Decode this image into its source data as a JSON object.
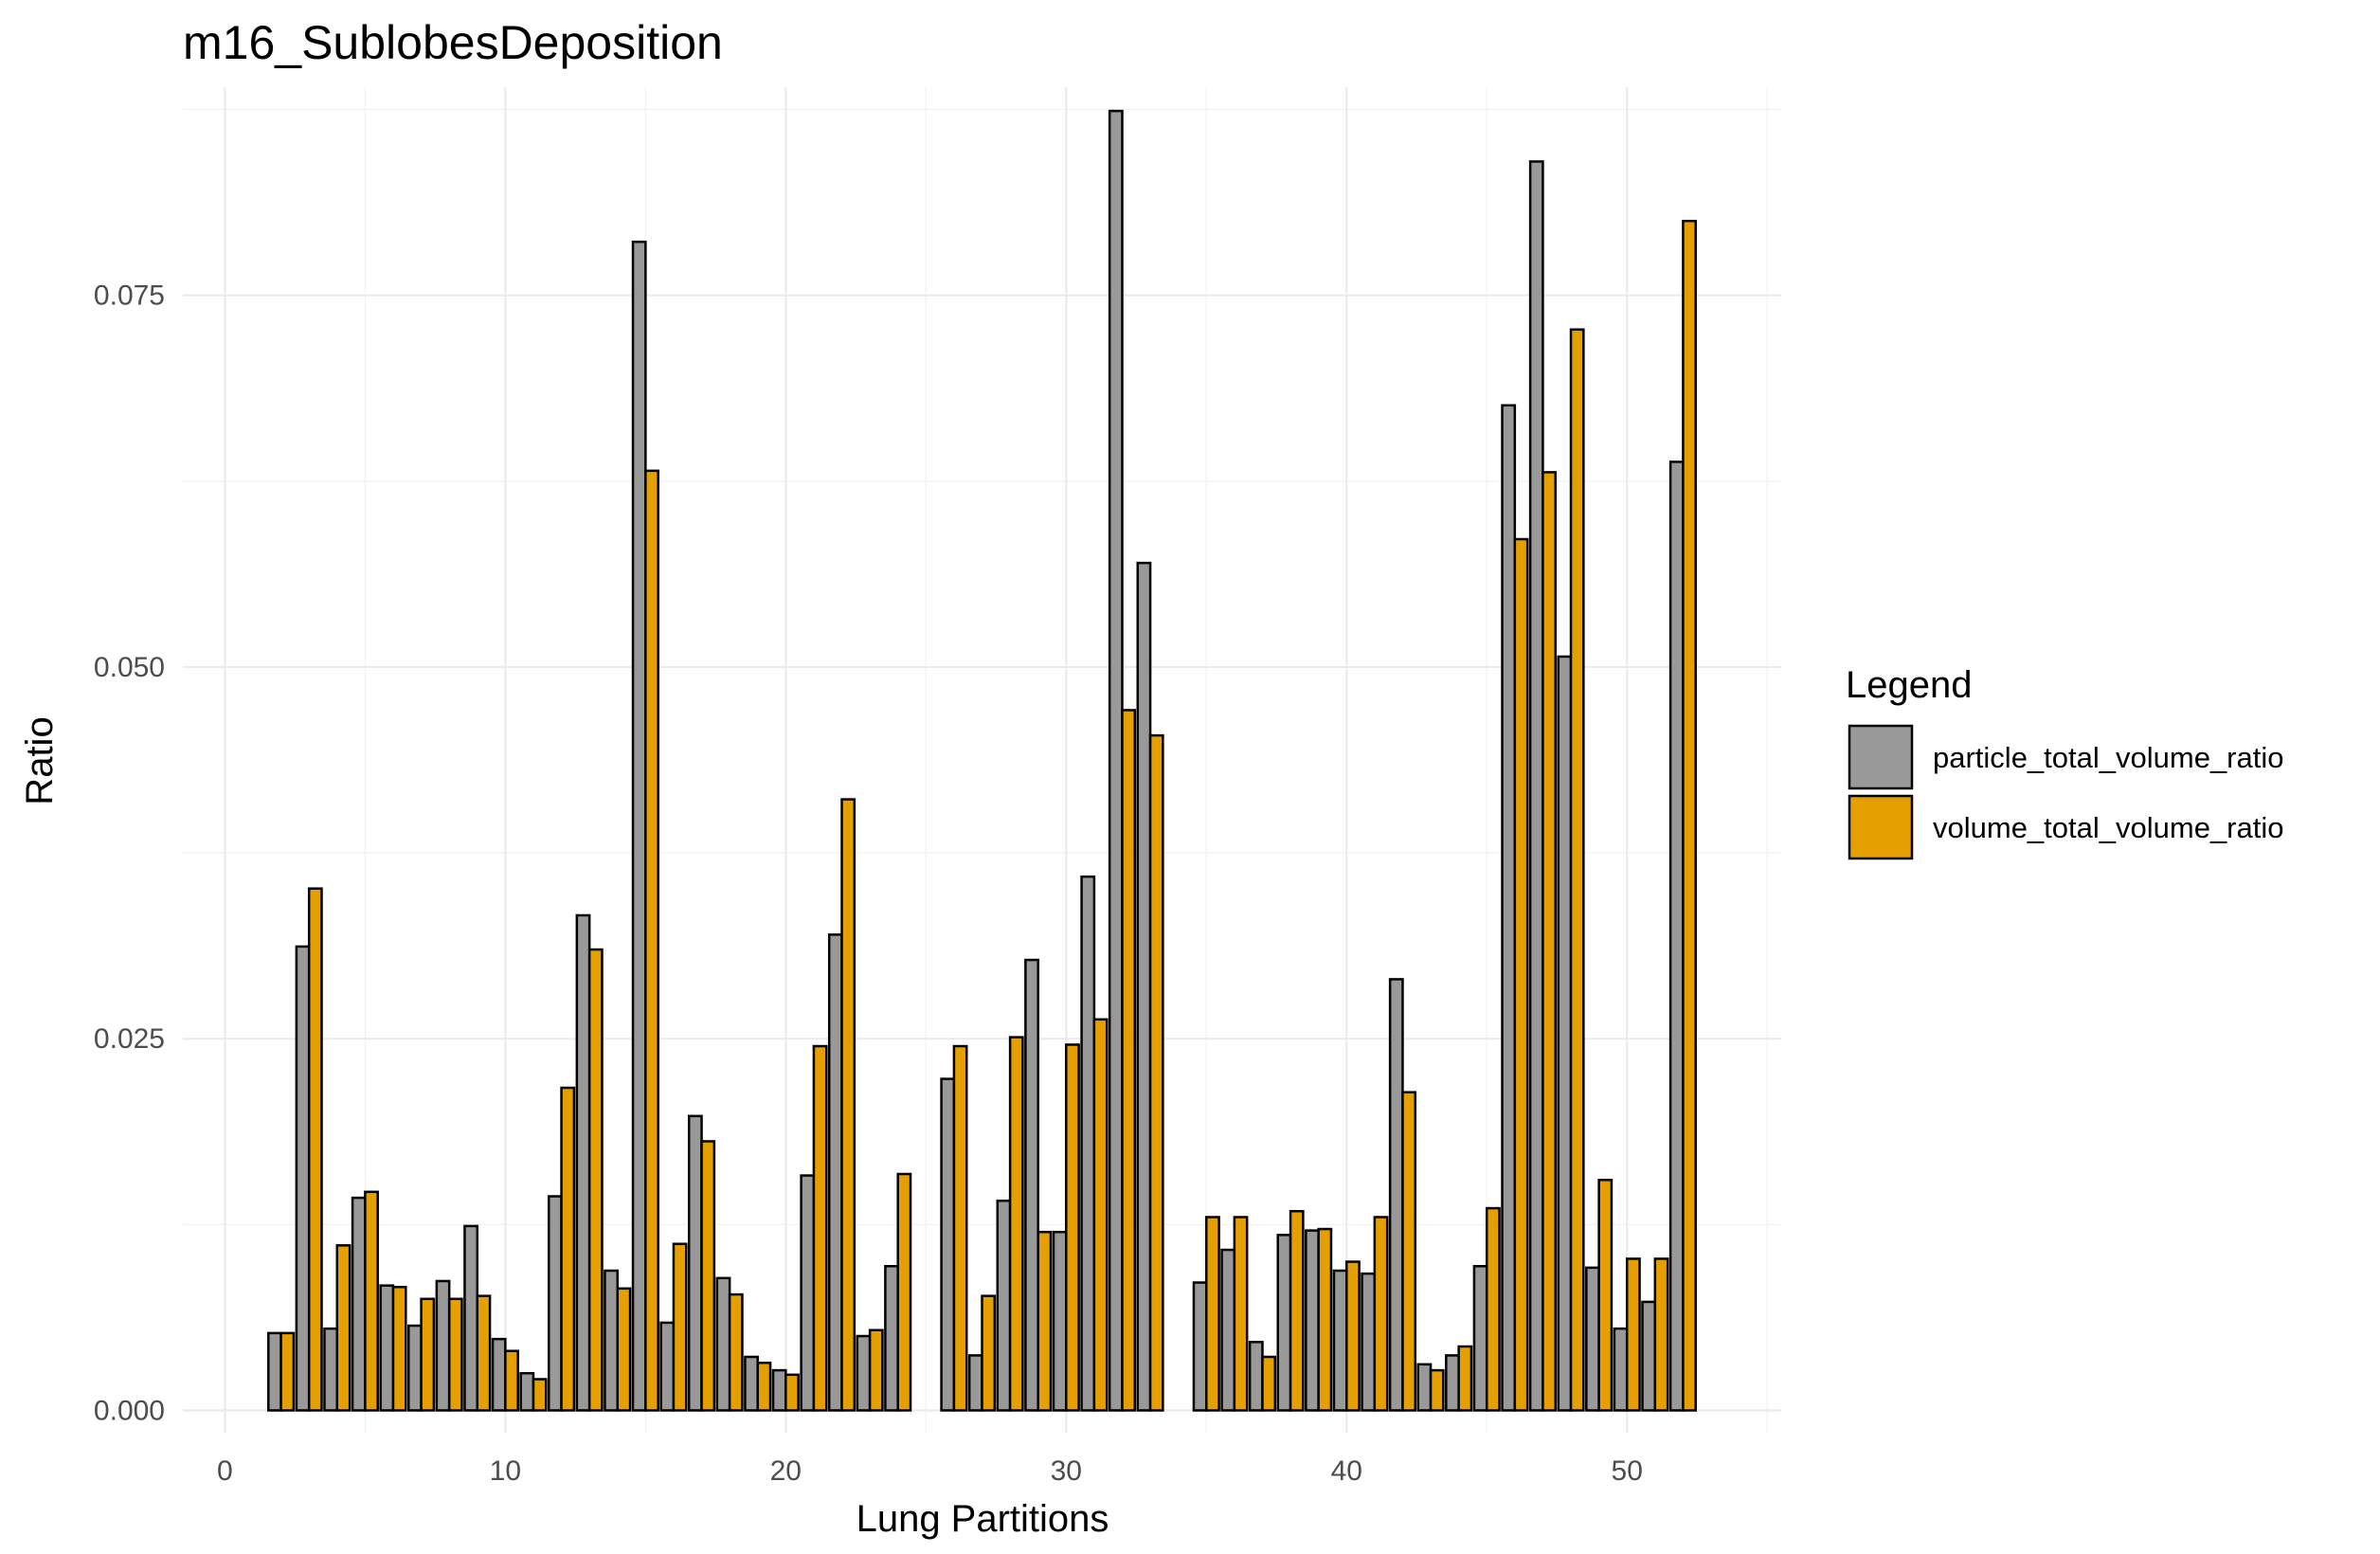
{
  "chart_data": {
    "type": "bar",
    "title": "m16_SublobesDeposition",
    "xlabel": "Lung Partitions",
    "ylabel": "Ratio",
    "xlim": [
      -1.5,
      55.5
    ],
    "ylim": [
      -0.0015,
      0.089
    ],
    "x_ticks": [
      0,
      10,
      20,
      30,
      40,
      50
    ],
    "x_tick_labels": [
      "0",
      "10",
      "20",
      "30",
      "40",
      "50"
    ],
    "y_ticks": [
      0.0,
      0.025,
      0.05,
      0.075
    ],
    "y_tick_labels": [
      "0.000",
      "0.025",
      "0.050",
      "0.075"
    ],
    "grid": true,
    "legend": {
      "title": "Legend",
      "position": "right"
    },
    "x": [
      1,
      2,
      3,
      4,
      5,
      6,
      7,
      8,
      9,
      10,
      11,
      12,
      13,
      14,
      15,
      16,
      17,
      18,
      19,
      20,
      21,
      22,
      23,
      24,
      25,
      26,
      27,
      28,
      29,
      30,
      31,
      32,
      33,
      34,
      35,
      36,
      37,
      38,
      39,
      40,
      41,
      42,
      43,
      44,
      45,
      46,
      47,
      48,
      49,
      50,
      51,
      52
    ],
    "series": [
      {
        "name": "particle_total_volume_ratio",
        "color": "#999999",
        "values": [
          0.0,
          0.0052,
          0.0312,
          0.0055,
          0.0143,
          0.0084,
          0.0057,
          0.0087,
          0.0124,
          0.0048,
          0.0025,
          0.0144,
          0.0333,
          0.0094,
          0.0786,
          0.0059,
          0.0198,
          0.0089,
          0.0036,
          0.0027,
          0.0158,
          0.032,
          0.005,
          0.0097,
          0.0,
          0.0223,
          0.0037,
          0.0141,
          0.0303,
          0.012,
          0.0359,
          0.0874,
          0.057,
          0.0,
          0.0086,
          0.0108,
          0.0046,
          0.0118,
          0.0121,
          0.0094,
          0.0092,
          0.029,
          0.0031,
          0.0037,
          0.0097,
          0.0676,
          0.084,
          0.0507,
          0.0096,
          0.0055,
          0.0073,
          0.0638
        ]
      },
      {
        "name": "volume_total_volume_ratio",
        "color": "#E69F00",
        "values": [
          0.0,
          0.0052,
          0.0351,
          0.0111,
          0.0147,
          0.0083,
          0.0075,
          0.0075,
          0.0077,
          0.004,
          0.0021,
          0.0217,
          0.031,
          0.0082,
          0.0632,
          0.0112,
          0.0181,
          0.0078,
          0.0032,
          0.0024,
          0.0245,
          0.0411,
          0.0054,
          0.0159,
          0.0,
          0.0245,
          0.0077,
          0.0251,
          0.012,
          0.0246,
          0.0263,
          0.0471,
          0.0454,
          0.0,
          0.013,
          0.013,
          0.0036,
          0.0134,
          0.0122,
          0.01,
          0.013,
          0.0214,
          0.0027,
          0.0043,
          0.0136,
          0.0586,
          0.0631,
          0.0727,
          0.0155,
          0.0102,
          0.0102,
          0.08
        ]
      }
    ]
  }
}
